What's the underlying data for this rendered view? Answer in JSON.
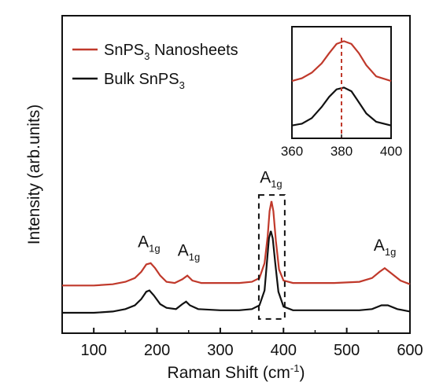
{
  "chart_data": {
    "type": "line",
    "xlabel": "Raman Shift (cm",
    "xlabel_sup": "-1",
    "xlabel_tail": ")",
    "ylabel": "Intensity (arb.units)",
    "xlim": [
      50,
      600
    ],
    "xticks": [
      100,
      200,
      300,
      400,
      500,
      600
    ],
    "grid": false,
    "legend_position": "top-left",
    "series": [
      {
        "name": "SnPS",
        "name_sub": "3",
        "name_tail": " Nanosheets",
        "color": "#c0392b",
        "x": [
          50,
          100,
          130,
          150,
          165,
          175,
          183,
          190,
          197,
          205,
          215,
          228,
          240,
          248,
          256,
          270,
          300,
          330,
          350,
          362,
          370,
          375,
          378,
          381,
          384,
          388,
          393,
          400,
          415,
          440,
          480,
          520,
          540,
          552,
          560,
          570,
          585,
          600
        ],
        "y": [
          0.22,
          0.22,
          0.23,
          0.25,
          0.28,
          0.33,
          0.39,
          0.4,
          0.36,
          0.3,
          0.25,
          0.24,
          0.27,
          0.3,
          0.26,
          0.24,
          0.24,
          0.24,
          0.25,
          0.28,
          0.4,
          0.62,
          0.82,
          0.9,
          0.82,
          0.58,
          0.35,
          0.26,
          0.24,
          0.24,
          0.24,
          0.25,
          0.28,
          0.33,
          0.36,
          0.32,
          0.26,
          0.23
        ]
      },
      {
        "name": "Bulk SnPS",
        "name_sub": "3",
        "name_tail": "",
        "color": "#111111",
        "x": [
          50,
          100,
          130,
          150,
          165,
          175,
          183,
          188,
          195,
          205,
          215,
          230,
          240,
          246,
          252,
          265,
          300,
          330,
          350,
          362,
          370,
          374,
          377,
          380,
          383,
          387,
          392,
          400,
          415,
          440,
          480,
          520,
          540,
          555,
          565,
          580,
          600
        ],
        "y": [
          0.0,
          0.0,
          0.01,
          0.03,
          0.06,
          0.11,
          0.17,
          0.18,
          0.14,
          0.07,
          0.04,
          0.03,
          0.07,
          0.09,
          0.06,
          0.03,
          0.02,
          0.02,
          0.03,
          0.06,
          0.18,
          0.42,
          0.6,
          0.66,
          0.6,
          0.4,
          0.17,
          0.05,
          0.02,
          0.02,
          0.02,
          0.02,
          0.03,
          0.06,
          0.06,
          0.03,
          0.01
        ]
      }
    ],
    "annotations": [
      {
        "text": "A",
        "sub": "1g",
        "x": 187,
        "y": 0.53
      },
      {
        "text": "A",
        "sub": "1g",
        "x": 250,
        "y": 0.46
      },
      {
        "text": "A",
        "sub": "1g",
        "x": 380,
        "y": 1.05
      },
      {
        "text": "A",
        "sub": "1g",
        "x": 560,
        "y": 0.5
      }
    ],
    "highlight_box": {
      "x": [
        361,
        402
      ],
      "y": [
        -0.05,
        0.95
      ]
    },
    "inset": {
      "xlim": [
        360,
        400
      ],
      "ylim": [
        0,
        1
      ],
      "xticks": [
        360,
        380,
        400
      ],
      "marker_x": 380,
      "series": [
        {
          "color": "#c0392b",
          "x": [
            360,
            364,
            368,
            372,
            375,
            378,
            381,
            384,
            387,
            390,
            394,
            400
          ],
          "y": [
            0.55,
            0.58,
            0.64,
            0.74,
            0.85,
            0.95,
            0.98,
            0.95,
            0.85,
            0.72,
            0.6,
            0.55
          ]
        },
        {
          "color": "#111111",
          "x": [
            360,
            364,
            368,
            372,
            375,
            378,
            381,
            384,
            387,
            390,
            394,
            400
          ],
          "y": [
            0.07,
            0.09,
            0.15,
            0.27,
            0.38,
            0.46,
            0.48,
            0.44,
            0.32,
            0.2,
            0.11,
            0.07
          ]
        }
      ]
    }
  }
}
